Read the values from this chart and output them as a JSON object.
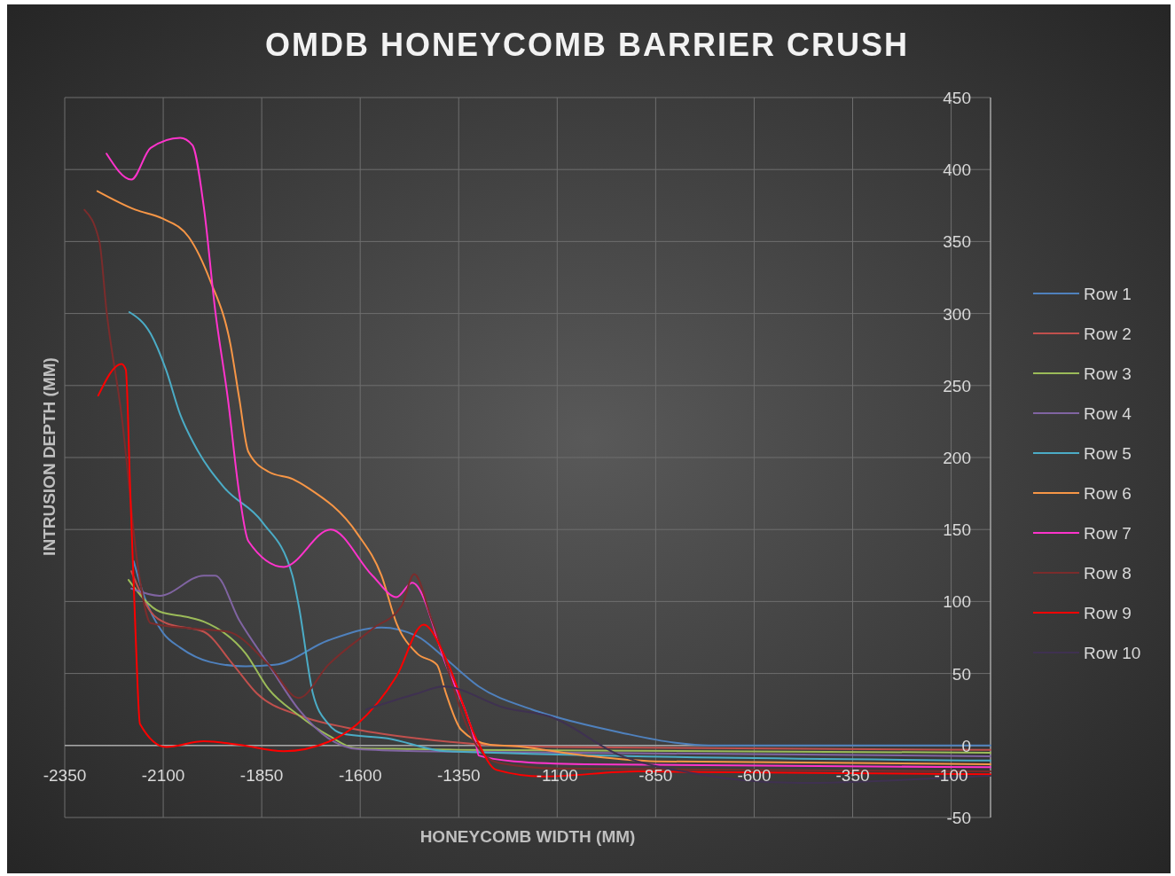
{
  "chart_data": {
    "type": "line",
    "title": "OMDB HONEYCOMB BARRIER CRUSH",
    "xlabel": "HONEYCOMB WIDTH (MM)",
    "ylabel": "INTRUSION DEPTH (MM)",
    "xlim": [
      -2350,
      0
    ],
    "xticks": [
      -2350,
      -2100,
      -1850,
      -1600,
      -1350,
      -1100,
      -850,
      -600,
      -350,
      -100
    ],
    "ylim": [
      -50,
      450
    ],
    "yticks": [
      -50,
      0,
      50,
      100,
      150,
      200,
      250,
      300,
      350,
      400,
      450
    ],
    "grid": true,
    "legend": "right",
    "series": [
      {
        "name": "Row 1",
        "color": "#4f81bd",
        "x": [
          -2175,
          -2150,
          -2100,
          -2057,
          -1981,
          -1891,
          -1817,
          -1681,
          -1546,
          -1456,
          -1382,
          -1299,
          -1164,
          -1051,
          -939,
          -804,
          -714,
          0
        ],
        "values": [
          128,
          105,
          78,
          68,
          58,
          55,
          56,
          73,
          82,
          76,
          60,
          41,
          25,
          16,
          9,
          2,
          0,
          0
        ]
      },
      {
        "name": "Row 2",
        "color": "#c0504d",
        "x": [
          -2181,
          -2132,
          -2093,
          -1997,
          -1922,
          -1862,
          -1756,
          -1607,
          -1456,
          -1306,
          -1100,
          0
        ],
        "values": [
          121,
          93,
          85,
          79,
          56,
          36,
          21,
          11,
          5,
          1,
          -1,
          -3
        ]
      },
      {
        "name": "Row 3",
        "color": "#9bbb59",
        "x": [
          -2188,
          -2109,
          -2035,
          -1997,
          -1891,
          -1832,
          -1756,
          -1681,
          -1607,
          -1456,
          -1350,
          0
        ],
        "values": [
          115,
          93,
          89,
          86,
          64,
          39,
          21,
          7,
          -2,
          -2.5,
          -3,
          -5
        ]
      },
      {
        "name": "Row 4",
        "color": "#8064a2",
        "x": [
          -2181,
          -2109,
          -1997,
          -1968,
          -1907,
          -1832,
          -1756,
          -1681,
          -1607,
          -1456,
          0
        ],
        "values": [
          109,
          104,
          118,
          118,
          87,
          56,
          25,
          5,
          -2.5,
          -4,
          -7.5
        ]
      },
      {
        "name": "Row 5",
        "color": "#4bacc6",
        "x": [
          -2186,
          -2132,
          -2093,
          -2057,
          -2019,
          -1945,
          -1848,
          -1772,
          -1756,
          -1720,
          -1681,
          -1643,
          -1531,
          -1382,
          0
        ],
        "values": [
          301,
          286,
          261,
          230,
          208,
          179,
          155,
          118,
          97,
          36,
          15,
          8,
          5,
          -4,
          -10.5
        ]
      },
      {
        "name": "Row 6",
        "color": "#f79646",
        "x": [
          -2267,
          -2170,
          -2102,
          -2035,
          -1981,
          -1929,
          -1907,
          -1884,
          -1832,
          -1771,
          -1733,
          -1607,
          -1546,
          -1508,
          -1456,
          -1405,
          -1382,
          -1344,
          -1270,
          -1209,
          -1030,
          -850,
          0
        ],
        "values": [
          385,
          372,
          366,
          353,
          323,
          278,
          241,
          204,
          190,
          185,
          179,
          147,
          118,
          85,
          64,
          56,
          36,
          11,
          0.5,
          -0.5,
          -7,
          -11,
          -13
        ]
      },
      {
        "name": "Row 7",
        "color": "#ff33cc",
        "x": [
          -2244,
          -2181,
          -2132,
          -2057,
          -2026,
          -1997,
          -1968,
          -1936,
          -1907,
          -1884,
          -1794,
          -1675,
          -1569,
          -1508,
          -1468,
          -1382,
          -1306,
          -1299,
          -1209,
          -1030,
          0
        ],
        "values": [
          411,
          393,
          415,
          422,
          417,
          374,
          302,
          241,
          175,
          142,
          124,
          150,
          118,
          103,
          113,
          56,
          0.6,
          -7,
          -11,
          -13,
          -15
        ]
      },
      {
        "name": "Row 8",
        "color": "#7b2c2c",
        "x": [
          -2300,
          -2262,
          -2244,
          -2206,
          -2161,
          -2132,
          -2019,
          -1936,
          -1832,
          -1756,
          -1681,
          -1569,
          -1495,
          -1463,
          -1418,
          -1306,
          -1250,
          -1100,
          0
        ],
        "values": [
          372,
          350,
          302,
          230,
          118,
          85,
          81,
          79,
          56,
          33,
          56,
          81,
          97,
          119,
          87,
          0.5,
          -12,
          -16,
          -18
        ]
      },
      {
        "name": "Row 9",
        "color": "#ff0000",
        "x": [
          -2265,
          -2206,
          -2195,
          -2184,
          -2170,
          -2159,
          -2093,
          -1997,
          -1907,
          -1794,
          -1681,
          -1607,
          -1508,
          -1439,
          -1382,
          -1306,
          -1254,
          -1137,
          -894,
          0
        ],
        "values": [
          243,
          265,
          261,
          179,
          76,
          15,
          -1,
          3,
          0.5,
          -4,
          2.5,
          15,
          48,
          84,
          60,
          5,
          -17,
          -21.5,
          -18,
          -20
        ]
      },
      {
        "name": "Row 10",
        "color": "#3f3151",
        "x": [
          -1585,
          -1456,
          -1389,
          -1231,
          -1118,
          -939,
          -759,
          -488,
          -39,
          0
        ],
        "values": [
          25,
          36,
          41,
          26,
          20,
          -7,
          -19,
          -26,
          -21.5,
          -21
        ]
      }
    ]
  }
}
